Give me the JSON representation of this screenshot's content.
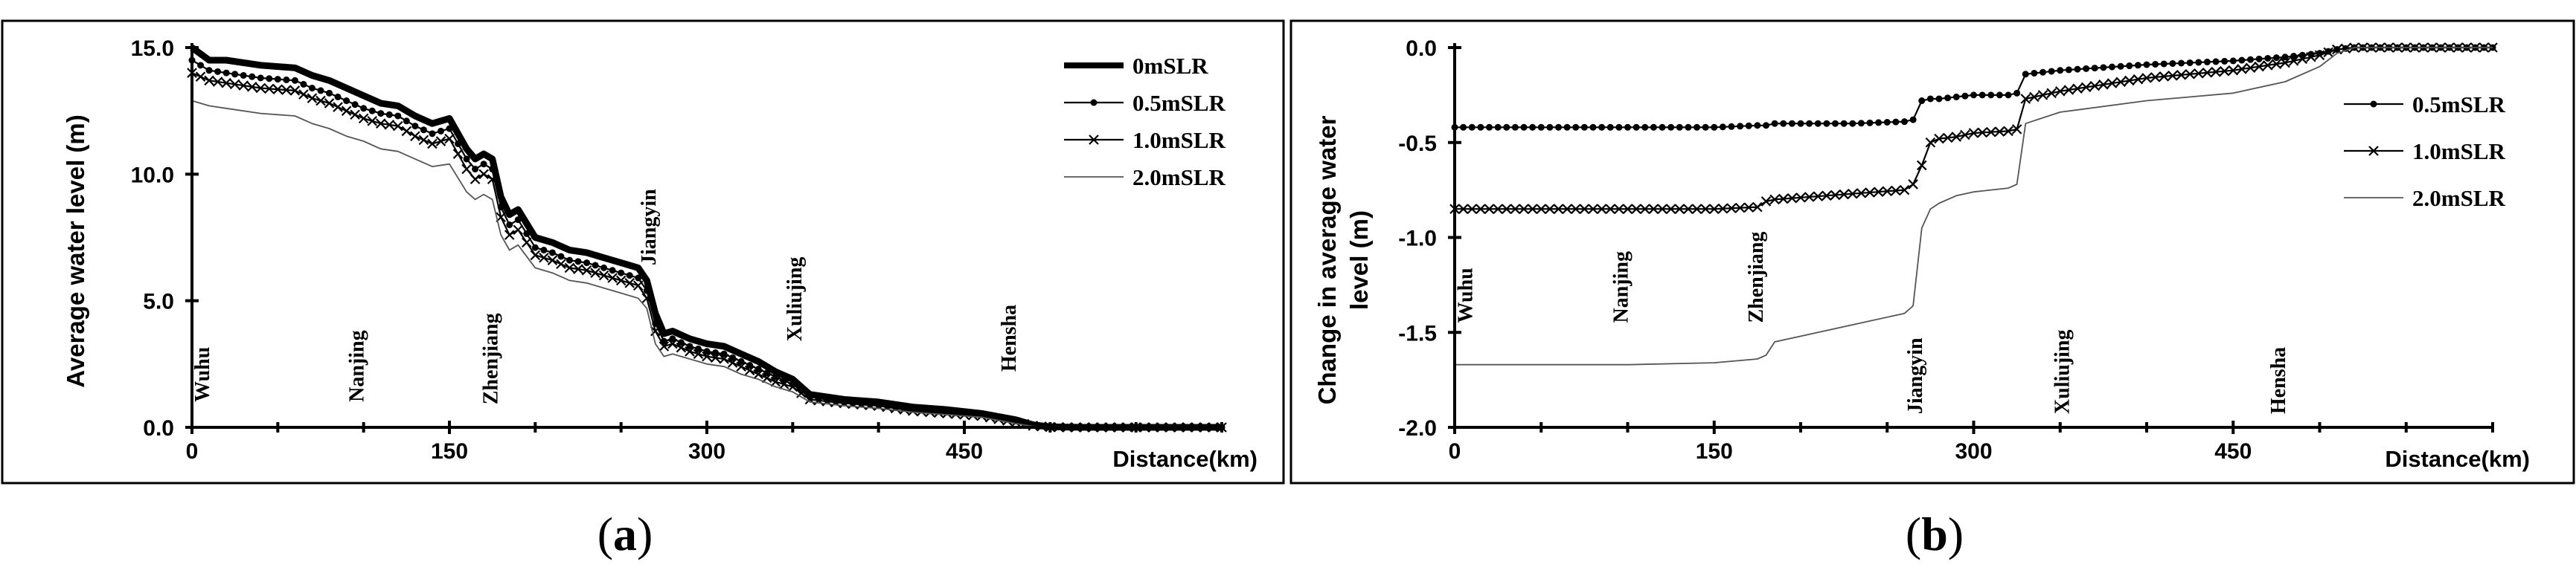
{
  "chart_data": [
    {
      "type": "line",
      "caption": "a",
      "xlabel": "Distance(km)",
      "ylabel": "Average water level (m)",
      "xlim": [
        0,
        600
      ],
      "ylim": [
        0,
        15
      ],
      "x_ticks": [
        0,
        150,
        300,
        450
      ],
      "y_ticks": [
        0.0,
        5.0,
        10.0,
        15.0
      ],
      "y_tick_labels": [
        "0.0",
        "5.0",
        "10.0",
        "15.0"
      ],
      "legend_position": "top-right",
      "stations": [
        {
          "name": "Wuhu",
          "x": 10,
          "y": 1.0
        },
        {
          "name": "Nanjing",
          "x": 100,
          "y": 1.0
        },
        {
          "name": "Zhenjiang",
          "x": 178,
          "y": 0.9
        },
        {
          "name": "Jiangyin",
          "x": 270,
          "y": 6.4
        },
        {
          "name": "Xuliujing",
          "x": 355,
          "y": 3.4
        },
        {
          "name": "Hensha",
          "x": 480,
          "y": 2.2
        }
      ],
      "x": [
        0,
        10,
        20,
        40,
        60,
        70,
        80,
        90,
        100,
        110,
        120,
        130,
        140,
        150,
        160,
        165,
        170,
        175,
        180,
        185,
        190,
        200,
        210,
        220,
        230,
        240,
        250,
        260,
        265,
        270,
        275,
        280,
        290,
        300,
        310,
        320,
        330,
        340,
        350,
        360,
        380,
        400,
        420,
        440,
        460,
        480,
        490,
        500,
        510,
        520,
        540,
        560,
        580,
        600
      ],
      "series": [
        {
          "name": "0mSLR",
          "style": "thick",
          "values": [
            15.0,
            14.5,
            14.5,
            14.3,
            14.2,
            13.9,
            13.7,
            13.4,
            13.1,
            12.8,
            12.7,
            12.3,
            12.0,
            12.2,
            11.0,
            10.6,
            10.8,
            10.6,
            9.1,
            8.4,
            8.6,
            7.5,
            7.3,
            7.0,
            6.9,
            6.7,
            6.5,
            6.3,
            5.8,
            4.5,
            3.7,
            3.8,
            3.5,
            3.3,
            3.2,
            2.9,
            2.6,
            2.2,
            1.9,
            1.3,
            1.1,
            1.0,
            0.8,
            0.7,
            0.55,
            0.3,
            0.1,
            0.02,
            0.01,
            0.0,
            0.0,
            0.0,
            0.0,
            0.0
          ]
        },
        {
          "name": "0.5mSLR",
          "style": "dot",
          "values": [
            14.5,
            14.1,
            14.0,
            13.8,
            13.7,
            13.4,
            13.2,
            12.9,
            12.6,
            12.4,
            12.3,
            11.9,
            11.6,
            11.8,
            10.6,
            10.2,
            10.4,
            10.2,
            8.7,
            8.0,
            8.2,
            7.1,
            6.9,
            6.6,
            6.5,
            6.3,
            6.1,
            5.9,
            5.4,
            4.1,
            3.4,
            3.5,
            3.2,
            3.0,
            2.9,
            2.6,
            2.3,
            2.0,
            1.7,
            1.2,
            1.0,
            0.9,
            0.7,
            0.6,
            0.5,
            0.25,
            0.08,
            0.02,
            0.01,
            0.0,
            0.0,
            0.0,
            0.0,
            0.0
          ]
        },
        {
          "name": "1.0mSLR",
          "style": "cross",
          "values": [
            14.0,
            13.7,
            13.6,
            13.4,
            13.3,
            13.0,
            12.8,
            12.5,
            12.2,
            12.0,
            11.9,
            11.5,
            11.2,
            11.4,
            10.2,
            9.8,
            10.0,
            9.8,
            8.3,
            7.6,
            7.8,
            6.8,
            6.6,
            6.3,
            6.2,
            6.0,
            5.8,
            5.6,
            5.1,
            3.8,
            3.2,
            3.3,
            3.0,
            2.8,
            2.7,
            2.4,
            2.1,
            1.8,
            1.6,
            1.1,
            0.95,
            0.85,
            0.65,
            0.55,
            0.45,
            0.2,
            0.06,
            0.01,
            0.0,
            0.0,
            0.0,
            0.0,
            0.0,
            0.0
          ]
        },
        {
          "name": "2.0mSLR",
          "style": "thin",
          "values": [
            12.9,
            12.7,
            12.6,
            12.4,
            12.3,
            12.0,
            11.8,
            11.5,
            11.3,
            11.0,
            10.9,
            10.6,
            10.3,
            10.4,
            9.3,
            9.0,
            9.2,
            9.0,
            7.6,
            7.0,
            7.2,
            6.3,
            6.1,
            5.8,
            5.7,
            5.5,
            5.3,
            5.1,
            4.7,
            3.3,
            2.8,
            2.9,
            2.7,
            2.5,
            2.4,
            2.1,
            1.9,
            1.6,
            1.4,
            1.0,
            0.85,
            0.75,
            0.6,
            0.5,
            0.4,
            0.15,
            0.04,
            0.01,
            0.0,
            0.0,
            0.0,
            0.0,
            0.0,
            0.0
          ]
        }
      ]
    },
    {
      "type": "line",
      "caption": "b",
      "xlabel": "Distance(km)",
      "ylabel": "Change in average water level (m)",
      "ylabel_lines": [
        "Change in average water",
        "level (m)"
      ],
      "xlim": [
        0,
        600
      ],
      "ylim": [
        -2.0,
        0.0
      ],
      "x_ticks": [
        0,
        150,
        300,
        450
      ],
      "y_ticks": [
        0.0,
        -0.5,
        -1.0,
        -1.5,
        -2.0
      ],
      "y_tick_labels": [
        "0.0",
        "-0.5",
        "-1.0",
        "-1.5",
        "-2.0"
      ],
      "legend_position": "top-right",
      "stations": [
        {
          "name": "Wuhu",
          "x": 10,
          "y": -1.45
        },
        {
          "name": "Nanjing",
          "x": 100,
          "y": -1.45
        },
        {
          "name": "Zhenjiang",
          "x": 178,
          "y": -1.45
        },
        {
          "name": "Jiangyin",
          "x": 270,
          "y": -1.93
        },
        {
          "name": "Xuliujing",
          "x": 355,
          "y": -1.93
        },
        {
          "name": "Hensha",
          "x": 480,
          "y": -1.93
        }
      ],
      "x": [
        0,
        50,
        100,
        150,
        175,
        180,
        185,
        200,
        230,
        260,
        265,
        270,
        275,
        280,
        290,
        300,
        320,
        325,
        330,
        350,
        400,
        450,
        480,
        500,
        510,
        520,
        550,
        600
      ],
      "series": [
        {
          "name": "0.5mSLR",
          "style": "dot",
          "values": [
            -0.42,
            -0.42,
            -0.42,
            -0.42,
            -0.41,
            -0.41,
            -0.4,
            -0.4,
            -0.4,
            -0.39,
            -0.38,
            -0.28,
            -0.27,
            -0.27,
            -0.26,
            -0.25,
            -0.25,
            -0.24,
            -0.14,
            -0.12,
            -0.09,
            -0.07,
            -0.05,
            -0.03,
            -0.01,
            0.0,
            0.0,
            0.0
          ]
        },
        {
          "name": "1.0mSLR",
          "style": "cross",
          "values": [
            -0.85,
            -0.85,
            -0.85,
            -0.85,
            -0.84,
            -0.81,
            -0.8,
            -0.79,
            -0.77,
            -0.75,
            -0.72,
            -0.62,
            -0.5,
            -0.48,
            -0.47,
            -0.45,
            -0.44,
            -0.43,
            -0.27,
            -0.23,
            -0.16,
            -0.12,
            -0.08,
            -0.04,
            -0.01,
            0.0,
            0.0,
            0.0
          ]
        },
        {
          "name": "2.0mSLR",
          "style": "thin",
          "values": [
            -1.67,
            -1.67,
            -1.67,
            -1.66,
            -1.64,
            -1.62,
            -1.55,
            -1.52,
            -1.46,
            -1.4,
            -1.36,
            -0.95,
            -0.85,
            -0.82,
            -0.78,
            -0.76,
            -0.74,
            -0.72,
            -0.4,
            -0.34,
            -0.28,
            -0.24,
            -0.18,
            -0.1,
            -0.03,
            0.0,
            0.0,
            0.0
          ]
        }
      ]
    }
  ]
}
